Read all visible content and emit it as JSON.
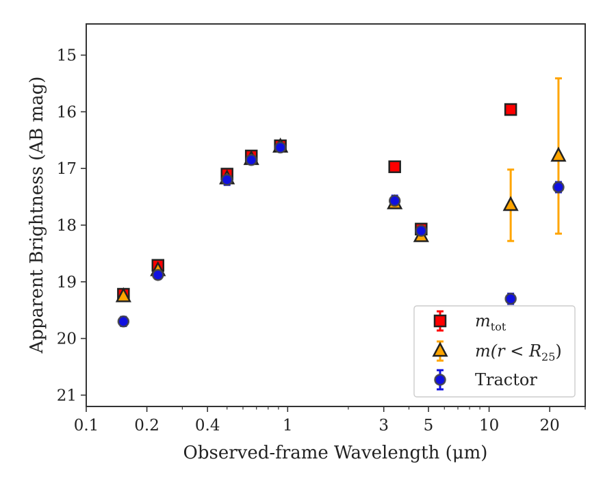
{
  "chart_data": {
    "type": "scatter",
    "xlabel": "Observed-frame Wavelength (μm)",
    "ylabel": "Apparent Brightness (AB mag)",
    "x_scale": "log",
    "xlim": [
      0.1,
      30
    ],
    "ylim": [
      21.2,
      14.45
    ],
    "y_inverted": true,
    "grid": false,
    "legend_position": "bottom-right",
    "x_ticks": [
      {
        "value": 0.1,
        "label": "0.1"
      },
      {
        "value": 0.2,
        "label": "0.2"
      },
      {
        "value": 0.4,
        "label": "0.4"
      },
      {
        "value": 1,
        "label": "1"
      },
      {
        "value": 3,
        "label": "3"
      },
      {
        "value": 5,
        "label": "5"
      },
      {
        "value": 10,
        "label": "10"
      },
      {
        "value": 20,
        "label": "20"
      }
    ],
    "y_ticks": [
      {
        "value": 15,
        "label": "15"
      },
      {
        "value": 16,
        "label": "16"
      },
      {
        "value": 17,
        "label": "17"
      },
      {
        "value": 18,
        "label": "18"
      },
      {
        "value": 19,
        "label": "19"
      },
      {
        "value": 20,
        "label": "20"
      },
      {
        "value": 21,
        "label": "21"
      }
    ],
    "series": [
      {
        "name": "m_tot",
        "legend": {
          "main": "m",
          "sub": "tot"
        },
        "marker": "square",
        "color": "#ff0000",
        "edge_color": "#222222",
        "points": [
          {
            "x": 0.153,
            "y": 19.22,
            "err": 0.05
          },
          {
            "x": 0.227,
            "y": 18.71,
            "err": 0.05
          },
          {
            "x": 0.5,
            "y": 17.1,
            "err": 0.05
          },
          {
            "x": 0.66,
            "y": 16.78,
            "err": 0.05
          },
          {
            "x": 0.92,
            "y": 16.6,
            "err": 0.05
          },
          {
            "x": 3.4,
            "y": 16.97,
            "err": 0.03
          },
          {
            "x": 4.6,
            "y": 18.07,
            "err": 0.03
          },
          {
            "x": 12.8,
            "y": 15.96,
            "err": 0.04
          }
        ]
      },
      {
        "name": "m(r < R25)",
        "legend": {
          "main": "m(r < R",
          "sub": "25",
          "tail": ")"
        },
        "marker": "triangle",
        "color": "#ffa500",
        "edge_color": "#222222",
        "points": [
          {
            "x": 0.153,
            "y": 19.26,
            "err": 0.05
          },
          {
            "x": 0.227,
            "y": 18.8,
            "err": 0.05
          },
          {
            "x": 0.5,
            "y": 17.18,
            "err": 0.05
          },
          {
            "x": 0.66,
            "y": 16.84,
            "err": 0.05
          },
          {
            "x": 0.92,
            "y": 16.62,
            "err": 0.05
          },
          {
            "x": 3.4,
            "y": 17.62,
            "err": 0.05
          },
          {
            "x": 4.6,
            "y": 18.2,
            "err": 0.05
          },
          {
            "x": 12.8,
            "y": 17.65,
            "err": 0.63
          },
          {
            "x": 22.1,
            "y": 16.78,
            "err": 1.37
          }
        ]
      },
      {
        "name": "Tractor",
        "legend": {
          "main": "Tractor"
        },
        "marker": "circle",
        "color": "#1010e0",
        "edge_color": "#444444",
        "points": [
          {
            "x": 0.153,
            "y": 19.7,
            "err": 0.08
          },
          {
            "x": 0.227,
            "y": 18.88,
            "err": 0.07
          },
          {
            "x": 0.5,
            "y": 17.2,
            "err": 0.09
          },
          {
            "x": 0.66,
            "y": 16.85,
            "err": 0.06
          },
          {
            "x": 0.92,
            "y": 16.63,
            "err": 0.05
          },
          {
            "x": 3.4,
            "y": 17.57,
            "err": 0.09
          },
          {
            "x": 4.6,
            "y": 18.1,
            "err": 0.05
          },
          {
            "x": 12.8,
            "y": 19.3,
            "err": 0.09
          },
          {
            "x": 22.1,
            "y": 17.33,
            "err": 0.09
          }
        ]
      }
    ]
  }
}
